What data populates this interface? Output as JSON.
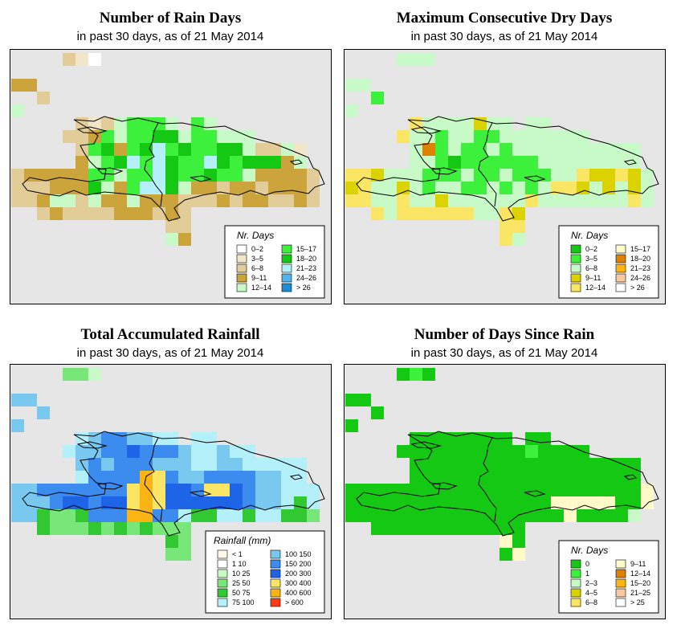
{
  "panels": [
    {
      "id": "rain_days",
      "title": "Number of Rain Days",
      "subtitle": "in past 30 days, as of  21 May 2014",
      "legend": {
        "title": "Nr. Days",
        "items": [
          {
            "label": "0–2",
            "color": "#ffffff"
          },
          {
            "label": "3–5",
            "color": "#f3e6c8"
          },
          {
            "label": "6–8",
            "color": "#e2cc98"
          },
          {
            "label": "9–11",
            "color": "#cca43c"
          },
          {
            "label": "12–14",
            "color": "#c8fac8"
          },
          {
            "label": "15–17",
            "color": "#3cf03c"
          },
          {
            "label": "18–20",
            "color": "#14c814"
          },
          {
            "label": "21–23",
            "color": "#b4f0fa"
          },
          {
            "label": "24–26",
            "color": "#50b4f0"
          },
          {
            "label": "> 26",
            "color": "#1e8cd2"
          }
        ]
      }
    },
    {
      "id": "dry_days",
      "title": "Maximum Consecutive Dry Days",
      "subtitle": "in past 30 days, as of  21 May 2014",
      "legend": {
        "title": "Nr. Days",
        "items": [
          {
            "label": "0–2",
            "color": "#14c814"
          },
          {
            "label": "3–5",
            "color": "#3cf03c"
          },
          {
            "label": "6–8",
            "color": "#c8fac8"
          },
          {
            "label": "9–11",
            "color": "#dcd200"
          },
          {
            "label": "12–14",
            "color": "#fae664"
          },
          {
            "label": "15–17",
            "color": "#fffac8"
          },
          {
            "label": "18–20",
            "color": "#dc8200"
          },
          {
            "label": "21–23",
            "color": "#fab414"
          },
          {
            "label": "24–26",
            "color": "#fac8a0"
          },
          {
            "label": "> 26",
            "color": "#ffffff"
          }
        ]
      }
    },
    {
      "id": "rainfall",
      "title": "Total Accumulated Rainfall",
      "subtitle": "in past 30 days, as of  21 May 2014",
      "legend": {
        "title": "Rainfall (mm)",
        "items": [
          {
            "label": "< 1",
            "color": "#fff8e8"
          },
          {
            "label": "1    10",
            "color": "#ffffff"
          },
          {
            "label": "10    25",
            "color": "#c8fac8"
          },
          {
            "label": "25    50",
            "color": "#78e678"
          },
          {
            "label": "50    75",
            "color": "#32c832"
          },
          {
            "label": "75   100",
            "color": "#b4f0fa"
          },
          {
            "label": "100   150",
            "color": "#78c8f0"
          },
          {
            "label": "150   200",
            "color": "#3c8cf0"
          },
          {
            "label": "200   300",
            "color": "#1e64e6"
          },
          {
            "label": "300   400",
            "color": "#fae664"
          },
          {
            "label": "400   600",
            "color": "#fab414"
          },
          {
            "label": "> 600",
            "color": "#fa3c14"
          }
        ]
      }
    },
    {
      "id": "since_rain",
      "title": "Number of Days Since Rain",
      "subtitle": "in past 30 days, as of  21 May 2014",
      "legend": {
        "title": "Nr. Days",
        "items": [
          {
            "label": "0",
            "color": "#14c814"
          },
          {
            "label": "1",
            "color": "#3cf03c"
          },
          {
            "label": "2–3",
            "color": "#c8fac8"
          },
          {
            "label": "4–5",
            "color": "#dcd200"
          },
          {
            "label": "6–8",
            "color": "#fae664"
          },
          {
            "label": "9–11",
            "color": "#fffac8"
          },
          {
            "label": "12–14",
            "color": "#dc8200"
          },
          {
            "label": "15–20",
            "color": "#fab414"
          },
          {
            "label": "21–25",
            "color": "#fac8a0"
          },
          {
            "label": "> 25",
            "color": "#ffffff"
          }
        ]
      }
    }
  ],
  "colors": {
    "map_background": "#e6e6e6",
    "border": "#000000"
  }
}
